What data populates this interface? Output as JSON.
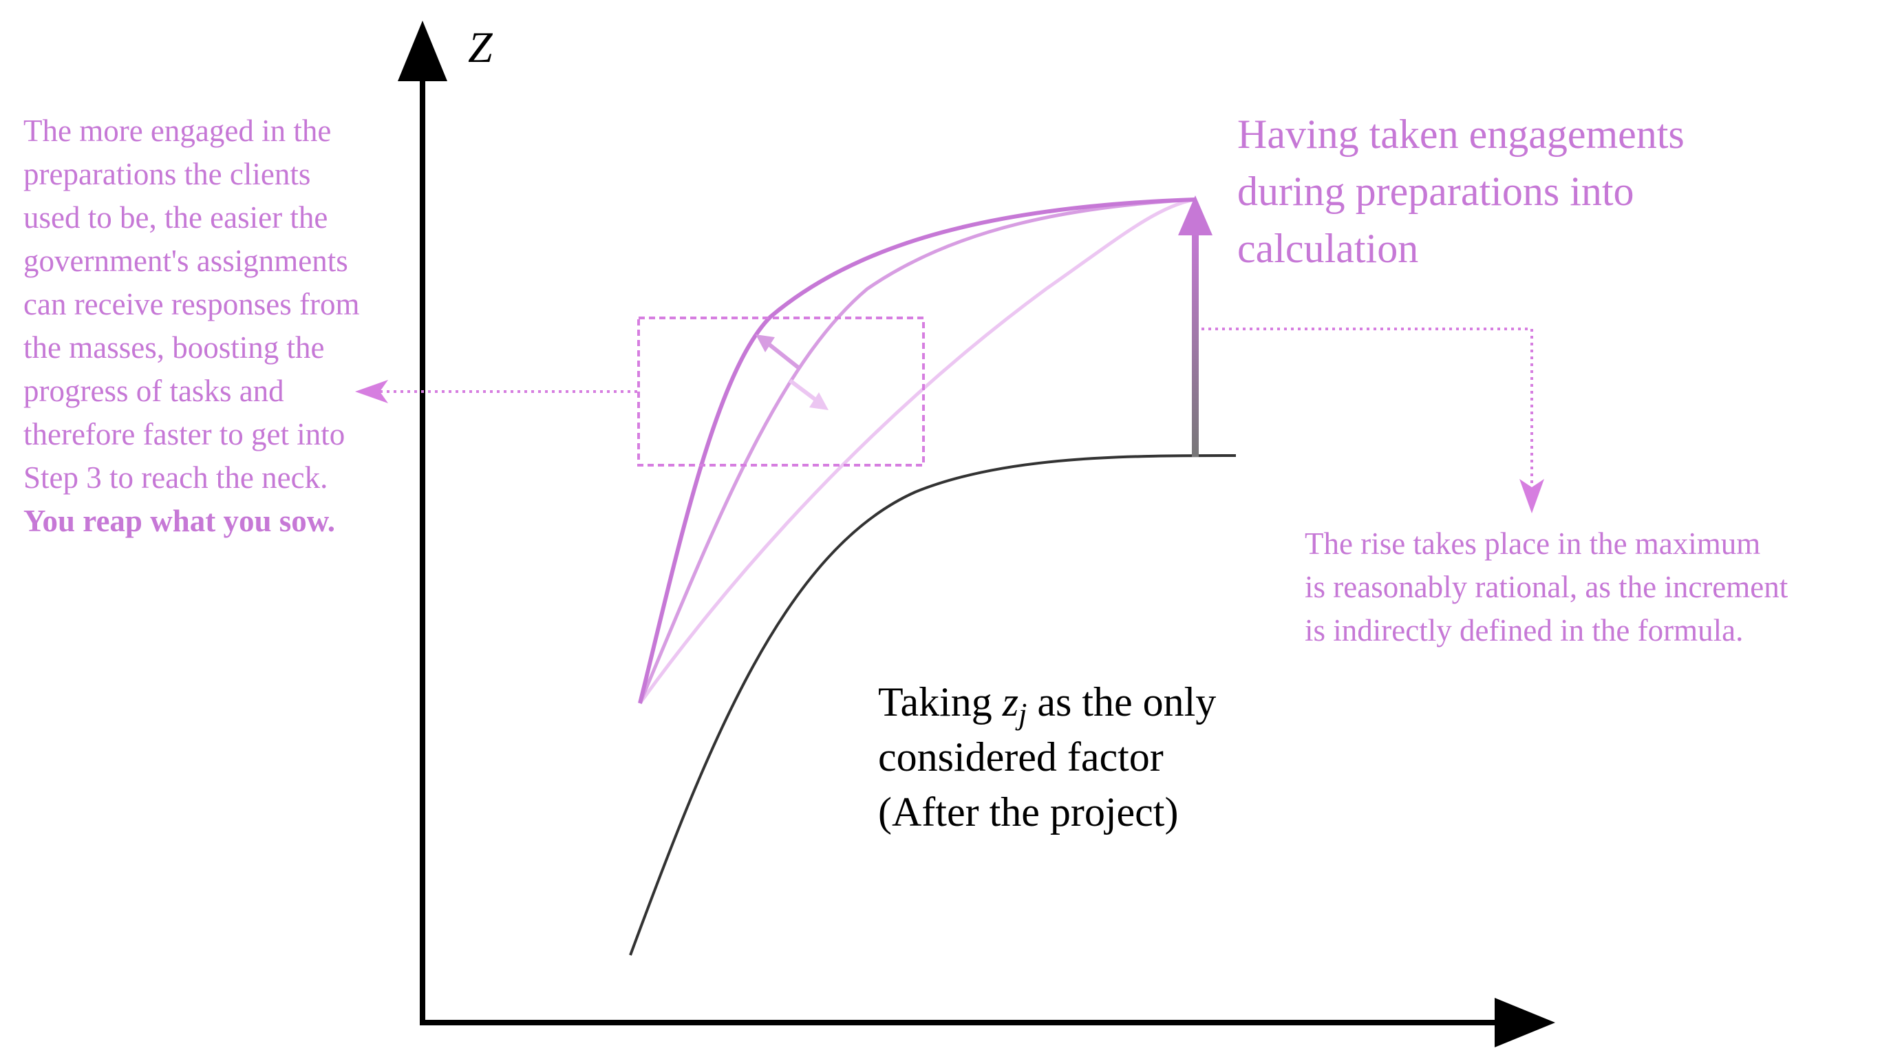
{
  "axes": {
    "y_label": "Z"
  },
  "left_annotation": {
    "lines": [
      "The more engaged in the",
      "preparations the clients",
      "used to be, the easier the",
      "government's assignments",
      "can receive responses from",
      "the masses, boosting the",
      "progress of tasks and",
      "therefore faster to get into",
      "Step 3 to reach the neck."
    ],
    "emphasis": "You reap what you sow."
  },
  "top_right_annotation": {
    "lines": [
      "Having taken engagements",
      "during preparations into",
      "calculation"
    ]
  },
  "right_annotation": {
    "lines": [
      "The rise takes place in the maximum",
      "is reasonably rational, as the increment",
      "is indirectly defined in the formula."
    ]
  },
  "black_curve_label": {
    "prefix": "Taking ",
    "symbol": "z",
    "subscript": "j",
    "suffix": " as the only",
    "line2": "considered factor",
    "line3": "(After the project)"
  },
  "colors": {
    "axis": "#000000",
    "accent": "#c678d6",
    "accent_mid": "#d79de2",
    "accent_light": "#ecc6f2",
    "box_border": "#d67ee0",
    "baseline_curve": "#333333"
  }
}
